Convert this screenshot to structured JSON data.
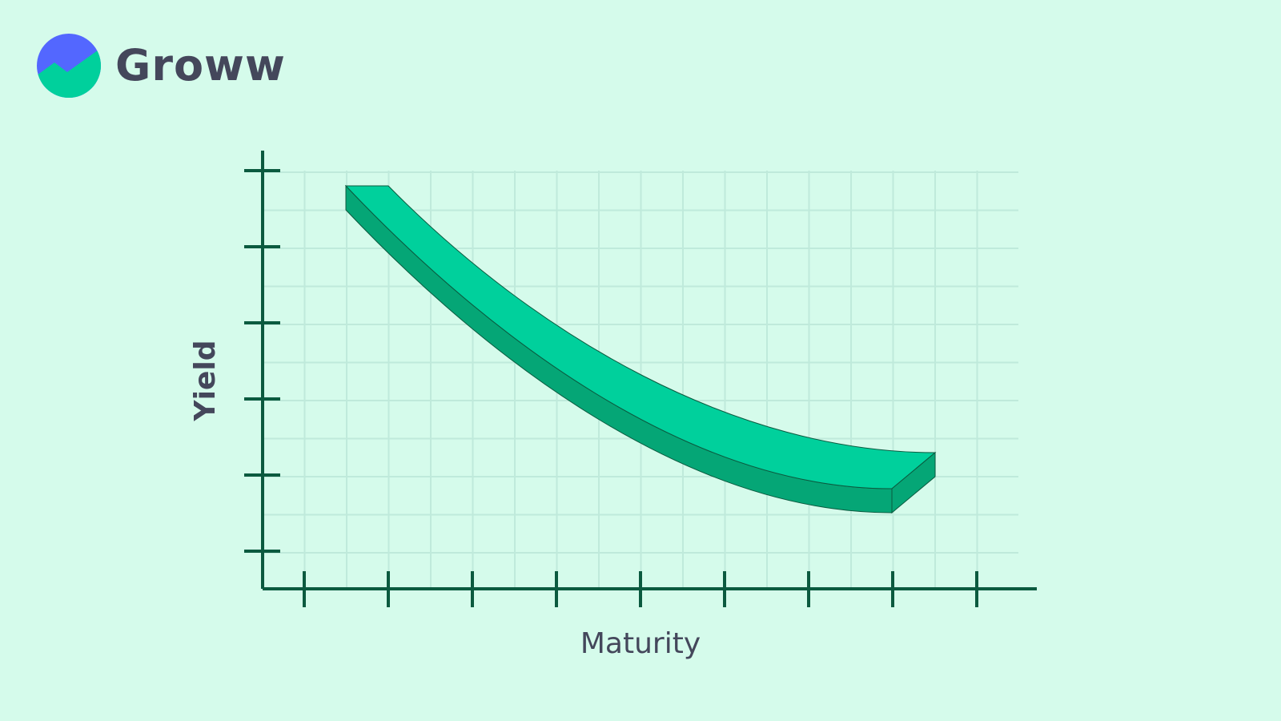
{
  "brand": {
    "name": "Groww",
    "logo_icon": "groww-logo-icon",
    "logo_colors": {
      "top": "#5367ff",
      "bottom": "#00d09c"
    }
  },
  "diagram": {
    "type": "yield-curve",
    "x_axis_label": "Maturity",
    "y_axis_label": "Yield",
    "grid": true,
    "colors": {
      "background": "#d5fbeb",
      "axis": "#0b5a3f",
      "grid": "#bfeadb",
      "band_top": "#00d09c",
      "band_side": "#05a676",
      "text": "#44475b"
    }
  }
}
